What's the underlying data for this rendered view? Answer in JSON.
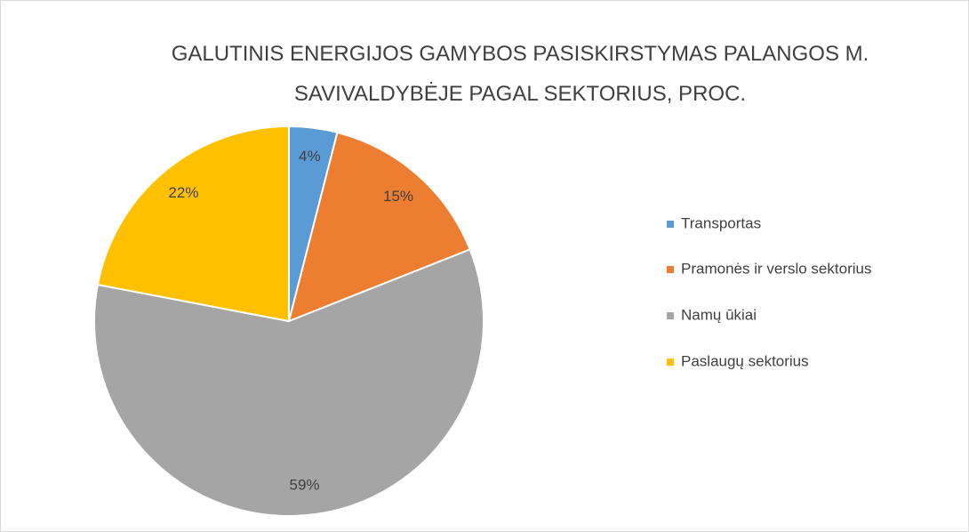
{
  "chart_data": {
    "type": "pie",
    "title": "GALUTINIS ENERGIJOS GAMYBOS PASISKIRSTYMAS PALANGOS M. SAVIVALDYBĖJE PAGAL SEKTORIUS, PROC.",
    "categories": [
      "Transportas",
      "Pramonės ir verslo sektorius",
      "Namų ūkiai",
      "Paslaugų sektorius"
    ],
    "values": [
      4,
      15,
      59,
      22
    ],
    "value_labels": [
      "4%",
      "15%",
      "59%",
      "22%"
    ],
    "colors": [
      "#5b9bd5",
      "#ed7d31",
      "#a5a5a5",
      "#ffc000"
    ],
    "legend": "right"
  }
}
